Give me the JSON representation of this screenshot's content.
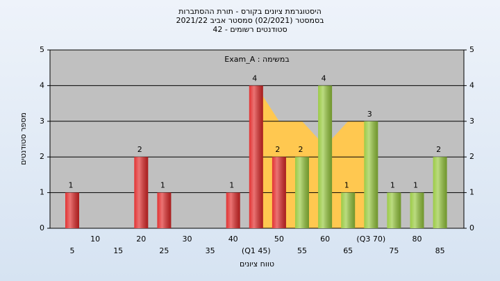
{
  "chart_data": {
    "type": "bar",
    "title": "היסטוגרמת ציונים בקורס - תורת ההסתברות",
    "subtitle": "בסמסטר (02/2021) סמסטר אביב 2021/22",
    "subtitle2": "סטודנטים רשומים - 42",
    "legend_label": "Exam_A : במשימה",
    "x_label": "טווח ציונים",
    "y_label": "מספר סטודנטים",
    "categories": [
      "5",
      "10",
      "15",
      "20",
      "25",
      "30",
      "35",
      "40",
      "(Q1 45)",
      "50",
      "55",
      "60",
      "65",
      "(Q3 70)",
      "75",
      "80",
      "85"
    ],
    "values": [
      1,
      0,
      0,
      2,
      1,
      0,
      0,
      1,
      4,
      2,
      2,
      4,
      1,
      3,
      1,
      1,
      2
    ],
    "value_labels": [
      "1",
      null,
      null,
      "2",
      "1",
      null,
      null,
      "1",
      "4",
      "2",
      "2",
      "4",
      "1",
      "3",
      "1",
      "1",
      "2"
    ],
    "colors": [
      "#e02828",
      "#e02828",
      "#e02828",
      "#e02828",
      "#e02828",
      "#e02828",
      "#e02828",
      "#e02828",
      "#e02828",
      "#e02828",
      "#96c83c",
      "#96c83c",
      "#96c83c",
      "#96c83c",
      "#96c83c",
      "#96c83c",
      "#96c83c"
    ],
    "area": {
      "color": "#ffc850",
      "values": [
        null,
        null,
        null,
        null,
        null,
        null,
        null,
        null,
        4,
        3,
        3,
        2.3,
        3,
        3,
        null,
        null,
        null
      ]
    },
    "ylim": [
      0,
      5
    ],
    "yticks": [
      0,
      1,
      2,
      3,
      4,
      5
    ],
    "grid": true
  }
}
